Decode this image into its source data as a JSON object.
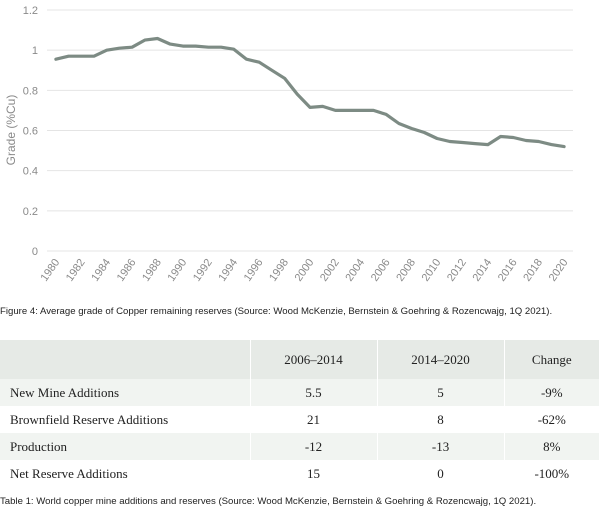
{
  "chart_data": {
    "type": "line",
    "title": "",
    "xlabel": "",
    "ylabel": "Grade (%Cu)",
    "ylim": [
      0,
      1.2
    ],
    "y_ticks": [
      "0",
      "0.2",
      "0.4",
      "0.6",
      "0.8",
      "1",
      "1.2"
    ],
    "x_ticks": [
      "1980",
      "1982",
      "1984",
      "1986",
      "1988",
      "1990",
      "1992",
      "1994",
      "1996",
      "1998",
      "2000",
      "2002",
      "2004",
      "2006",
      "2008",
      "2010",
      "2012",
      "2014",
      "2016",
      "2018",
      "2020"
    ],
    "grid": true,
    "line_color": "#7d8b84",
    "series": [
      {
        "x": [
          1980,
          1981,
          1982,
          1983,
          1984,
          1985,
          1986,
          1987,
          1988,
          1989,
          1990,
          1991,
          1992,
          1993,
          1994,
          1995,
          1996,
          1997,
          1998,
          1999,
          2000,
          2001,
          2002,
          2003,
          2004,
          2005,
          2006,
          2007,
          2008,
          2009,
          2010,
          2011,
          2012,
          2013,
          2014,
          2015,
          2016,
          2017,
          2018,
          2019,
          2020
        ],
        "values": [
          0.955,
          0.97,
          0.97,
          0.97,
          1.0,
          1.01,
          1.015,
          1.05,
          1.058,
          1.03,
          1.02,
          1.02,
          1.015,
          1.015,
          1.005,
          0.955,
          0.94,
          0.9,
          0.86,
          0.78,
          0.715,
          0.72,
          0.7,
          0.7,
          0.7,
          0.7,
          0.68,
          0.635,
          0.61,
          0.59,
          0.56,
          0.545,
          0.54,
          0.535,
          0.53,
          0.57,
          0.565,
          0.55,
          0.545,
          0.53,
          0.52
        ]
      }
    ]
  },
  "figure_caption": "Figure 4: Average grade of Copper remaining reserves (Source: Wood McKenzie, Bernstein & Goehring & Rozencwajg, 1Q 2021).",
  "table": {
    "headers": [
      "",
      "2006–2014",
      "2014–2020",
      "Change"
    ],
    "rows": [
      {
        "label": "New Mine Additions",
        "a": "5.5",
        "b": "5",
        "change": "-9%"
      },
      {
        "label": "Brownfield Reserve Additions",
        "a": "21",
        "b": "8",
        "change": "-62%"
      },
      {
        "label": "Production",
        "a": "-12",
        "b": "-13",
        "change": "8%"
      },
      {
        "label": "Net Reserve Additions",
        "a": "15",
        "b": "0",
        "change": "-100%"
      }
    ],
    "header_bg": "#e6eae6",
    "stripe_bg": "#f1f4f1"
  },
  "table_caption": "Table 1: World copper mine additions and reserves (Source: Wood McKenzie, Bernstein & Goehring & Rozencwajg, 1Q 2021)."
}
